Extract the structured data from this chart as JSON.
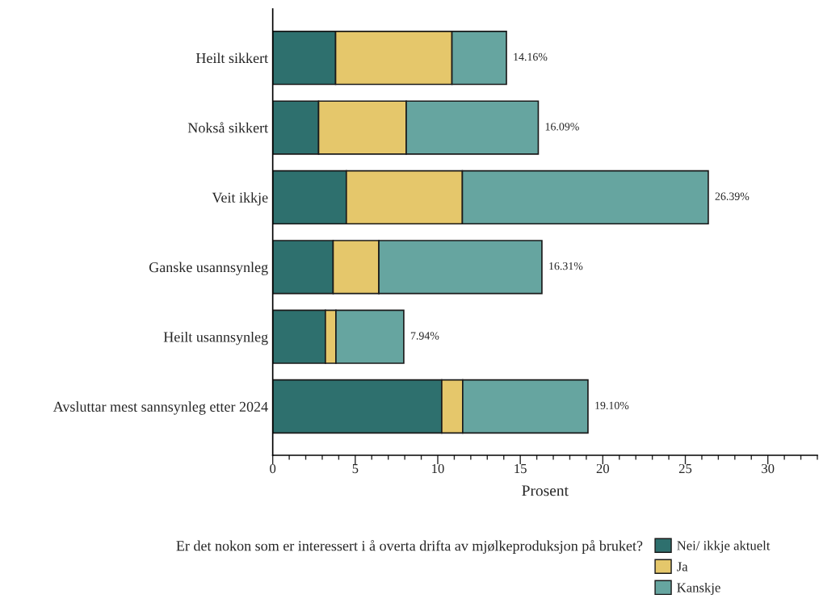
{
  "chart_data": {
    "type": "bar",
    "orientation": "horizontal",
    "stacked": true,
    "categories": [
      "Heilt sikkert",
      "Nokså sikkert",
      "Veit ikkje",
      "Ganske usannsynleg",
      "Heilt usannsynleg",
      "Avsluttar mest sannsynleg etter 2024"
    ],
    "series": [
      {
        "name": "Nei/ ikkje aktuelt",
        "color": "#2e706e",
        "values": [
          3.81,
          2.78,
          4.46,
          3.66,
          3.19,
          10.24
        ]
      },
      {
        "name": "Ja",
        "color": "#e5c76b",
        "values": [
          7.05,
          5.31,
          7.03,
          2.77,
          0.64,
          1.27
        ]
      },
      {
        "name": "Kanskje",
        "color": "#66a5a0",
        "values": [
          3.3,
          8.0,
          14.9,
          9.88,
          4.11,
          7.59
        ]
      }
    ],
    "totals": [
      "14.16%",
      "16.09%",
      "26.39%",
      "16.31%",
      "7.94%",
      "19.10%"
    ],
    "xlabel": "Prosent",
    "legend_title": "Er det nokon som er interessert i å overta drifta av mjølkeproduksjon på bruket?",
    "legend": "bottom",
    "grid": false,
    "xlim": [
      0,
      33
    ],
    "xticks": [
      0,
      {
        "value": 1,
        "label": null
      },
      {
        "value": 2,
        "label": null
      },
      {
        "value": 3,
        "label": null
      },
      {
        "value": 4,
        "label": null
      },
      5,
      {
        "value": 6,
        "label": null
      },
      {
        "value": 7,
        "label": null
      },
      {
        "value": 8,
        "label": null
      },
      {
        "value": 9,
        "label": null
      },
      10,
      {
        "value": 11,
        "label": null
      },
      {
        "value": 12,
        "label": null
      },
      {
        "value": 13,
        "label": null
      },
      {
        "value": 14,
        "label": null
      },
      15,
      {
        "value": 16,
        "label": null
      },
      {
        "value": 17,
        "label": null
      },
      {
        "value": 18,
        "label": null
      },
      {
        "value": 19,
        "label": null
      },
      20,
      {
        "value": 21,
        "label": null
      },
      {
        "value": 22,
        "label": null
      },
      {
        "value": 23,
        "label": null
      },
      {
        "value": 24,
        "label": null
      },
      25,
      {
        "value": 26,
        "label": null
      },
      {
        "value": 27,
        "label": null
      },
      {
        "value": 28,
        "label": null
      },
      {
        "value": 29,
        "label": null
      },
      30,
      {
        "value": 31,
        "label": null
      },
      {
        "value": 32,
        "label": null
      },
      {
        "value": 33,
        "label": null
      }
    ]
  }
}
